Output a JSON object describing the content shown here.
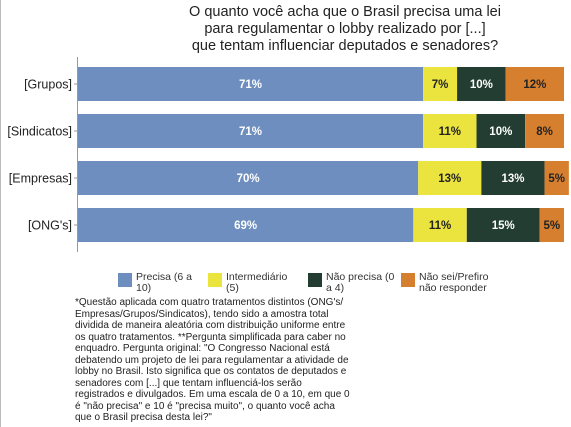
{
  "chart_data": {
    "type": "bar",
    "orientation": "horizontal",
    "stacked": true,
    "title_lines": [
      "O quanto você acha que o Brasil precisa uma lei",
      "para regulamentar o lobby realizado por [...]",
      "que tentam influenciar deputados e senadores?"
    ],
    "categories": [
      "[Grupos]",
      "[Sindicatos]",
      "[Empresas]",
      "[ONG's]"
    ],
    "series": [
      {
        "name": "Precisa (6 a 10)",
        "color": "#6d8ebf",
        "label_color": "#ffffff",
        "values": [
          71,
          71,
          70,
          69
        ],
        "labels": [
          "71%",
          "71%",
          "70%",
          "69%"
        ]
      },
      {
        "name": "Intermediário (5)",
        "color": "#ebe43f",
        "label_color": "#222222",
        "values": [
          7,
          11,
          13,
          11
        ],
        "labels": [
          "7%",
          "11%",
          "13%",
          "11%"
        ]
      },
      {
        "name": "Não precisa (0 a 4)",
        "color": "#233d33",
        "label_color": "#ffffff",
        "values": [
          10,
          10,
          13,
          15
        ],
        "labels": [
          "10%",
          "10%",
          "13%",
          "15%"
        ]
      },
      {
        "name": "Não sei/Prefiro não responder",
        "color": "#d6802f",
        "label_color": "#222222",
        "values": [
          12,
          8,
          5,
          5
        ],
        "labels": [
          "12%",
          "8%",
          "5%",
          "5%"
        ]
      }
    ],
    "xlim": [
      0,
      100
    ],
    "grid": false,
    "legend_position": "bottom"
  },
  "legend": [
    {
      "label": "Precisa (6 a\n10)"
    },
    {
      "label": "Intermediário\n(5)"
    },
    {
      "label": "Não precisa (0\na 4)"
    },
    {
      "label": "Não sei/Prefiro\nnão responder"
    }
  ],
  "footnote": "*Questão aplicada com quatro tratamentos distintos (ONG's/ Empresas/Grupos/Sindicatos), tendo sido a amostra total dividida de maneira aleatória com distribuição uniforme entre os quatro tratamentos. **Pergunta simplificada para caber no enquadro. Pergunta original: \"O Congresso Nacional está debatendo um projeto de lei para regulamentar a atividade de lobby no Brasil. Isto significa que os contatos de deputados e senadores com [...] que tentam influenciá-los serão registrados e divulgados. Em uma escala de 0 a 10, em que 0 é \"não precisa\" e 10 é \"precisa muito\", o quanto você acha que o Brasil precisa desta lei?\""
}
